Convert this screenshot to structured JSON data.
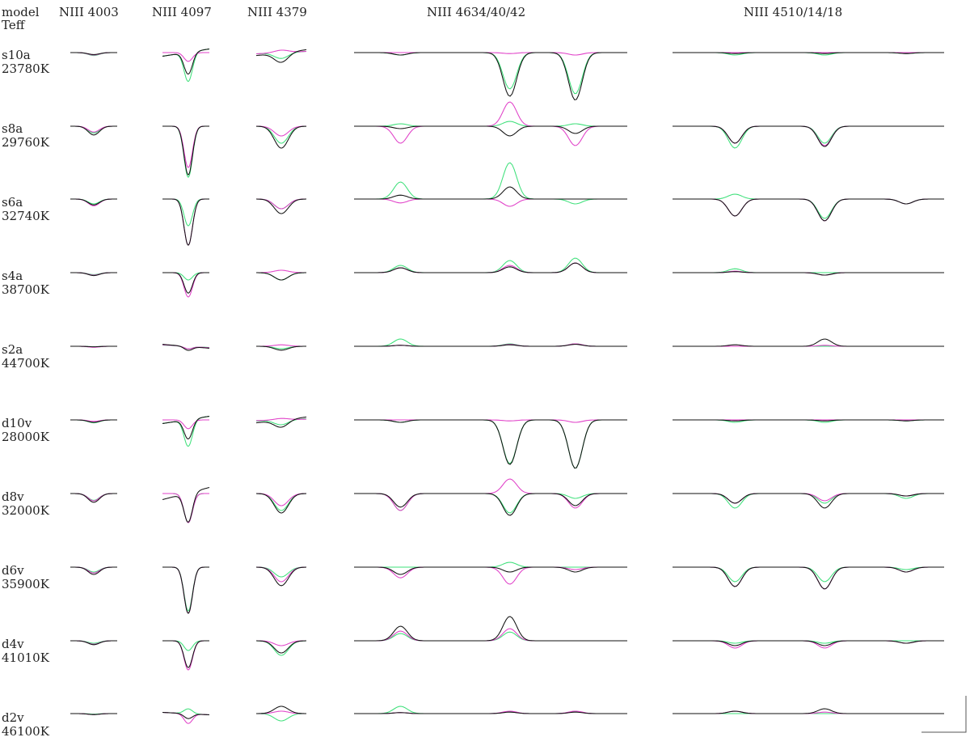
{
  "header": {
    "model_label": "model",
    "teff_label": "Teff",
    "columns": [
      "NIII 4003",
      "NIII 4097",
      "NIII 4379",
      "NIII 4634/40/42",
      "NIII 4510/14/18"
    ]
  },
  "rows": [
    {
      "model": "s10a",
      "teff": "23780K"
    },
    {
      "model": "s8a",
      "teff": "29760K"
    },
    {
      "model": "s6a",
      "teff": "32740K"
    },
    {
      "model": "s4a",
      "teff": "38700K"
    },
    {
      "model": "s2a",
      "teff": "44700K"
    },
    {
      "model": "d10v",
      "teff": "28000K"
    },
    {
      "model": "d8v",
      "teff": "32000K"
    },
    {
      "model": "d6v",
      "teff": "35900K"
    },
    {
      "model": "d4v",
      "teff": "41010K"
    },
    {
      "model": "d2v",
      "teff": "46100K"
    }
  ],
  "colors": {
    "black": "#111111",
    "magenta": "#e040c8",
    "green": "#3ee07a",
    "grey": "#999999"
  },
  "chart_data": {
    "type": "line",
    "description": "Grid of normalized line-profile panels: rows = models, columns = NIII line groups; three profile series per panel (black, magenta, green). Values are normalized flux (continuum = 1).",
    "xlabel": "",
    "ylabel": "",
    "columns": [
      {
        "name": "NIII 4003",
        "lines": [
          0.5
        ]
      },
      {
        "name": "NIII 4097",
        "lines": [
          0.55
        ]
      },
      {
        "name": "NIII 4379",
        "lines": [
          0.5
        ]
      },
      {
        "name": "NIII 4634/40/42",
        "lines": [
          0.17,
          0.57,
          0.81
        ]
      },
      {
        "name": "NIII 4510/14/18",
        "lines": [
          0.23,
          0.56,
          0.86
        ]
      }
    ],
    "series_colors": [
      "#111111",
      "#e040c8",
      "#3ee07a"
    ],
    "panels": [
      [
        {
          "a": [
            -0.04,
            -0.05,
            -0.06
          ]
        },
        {
          "a": [
            -0.45,
            -0.18,
            -0.6
          ],
          "tilt": [
            0.15,
            0.0,
            0.15
          ]
        },
        {
          "a": [
            -0.2,
            0.05,
            -0.12
          ],
          "tilt": [
            0.12,
            0.05,
            0.05
          ]
        },
        {
          "a": [
            [
              -0.05,
              -0.9,
              -0.98
            ],
            [
              0,
              -0.02,
              -0.05
            ],
            [
              -0.05,
              -0.75,
              -0.85
            ]
          ]
        },
        {
          "a": [
            [
              -0.02,
              -0.02,
              -0.02
            ],
            [
              0,
              0,
              0
            ],
            [
              -0.05,
              -0.05,
              -0.02
            ]
          ]
        }
      ],
      [
        {
          "a": [
            -0.18,
            -0.12,
            -0.14
          ]
        },
        {
          "a": [
            -1.0,
            -0.85,
            -1.05
          ]
        },
        {
          "a": [
            -0.45,
            -0.2,
            -0.35
          ]
        },
        {
          "a": [
            [
              -0.05,
              -0.2,
              -0.15
            ],
            [
              -0.35,
              0.5,
              -0.4
            ],
            [
              0.05,
              0.1,
              0.05
            ]
          ]
        },
        {
          "a": [
            [
              -0.35,
              -0.42,
              0.0
            ],
            [
              -0.35,
              -0.4,
              0.0
            ],
            [
              -0.45,
              -0.35,
              0.0
            ]
          ]
        }
      ],
      [
        {
          "a": [
            -0.12,
            -0.14,
            -0.1
          ]
        },
        {
          "a": [
            -0.95,
            -0.95,
            -0.55
          ]
        },
        {
          "a": [
            -0.3,
            -0.2,
            -0.2
          ]
        },
        {
          "a": [
            [
              0.08,
              0.25,
              0.0
            ],
            [
              -0.08,
              -0.15,
              0.0
            ],
            [
              0.35,
              0.75,
              -0.1
            ]
          ]
        },
        {
          "a": [
            [
              -0.35,
              -0.45,
              -0.1
            ],
            [
              -0.35,
              -0.45,
              -0.1
            ],
            [
              0.1,
              -0.4,
              -0.1
            ]
          ]
        }
      ],
      [
        {
          "a": [
            -0.06,
            -0.05,
            -0.04
          ]
        },
        {
          "a": [
            -0.42,
            -0.5,
            -0.15
          ]
        },
        {
          "a": [
            -0.15,
            0.05,
            -0.15
          ]
        },
        {
          "a": [
            [
              0.1,
              0.12,
              0.2
            ],
            [
              0.1,
              0.15,
              0.2
            ],
            [
              0.15,
              0.25,
              0.3
            ]
          ]
        },
        {
          "a": [
            [
              0.02,
              -0.05,
              0.0
            ],
            [
              0.03,
              -0.05,
              0.0
            ],
            [
              0.08,
              0.0,
              0.0
            ]
          ]
        }
      ],
      [
        {
          "a": [
            -0.01,
            -0.02,
            -0.01
          ]
        },
        {
          "a": [
            -0.08,
            -0.05,
            -0.05
          ],
          "tilt": [
            -0.08,
            -0.06,
            -0.05
          ]
        },
        {
          "a": [
            -0.08,
            0.03,
            -0.05
          ]
        },
        {
          "a": [
            [
              0.02,
              0.03,
              0.04
            ],
            [
              0.02,
              0.04,
              0.05
            ],
            [
              0.15,
              0.05,
              0.05
            ]
          ]
        },
        {
          "a": [
            [
              0.03,
              0.15,
              0.0
            ],
            [
              0.0,
              0.02,
              0.0
            ],
            [
              0.0,
              0.0,
              0.0
            ]
          ]
        }
      ],
      [
        {
          "a": [
            -0.05,
            -0.03,
            -0.06
          ]
        },
        {
          "a": [
            -0.4,
            -0.18,
            -0.55
          ],
          "tilt": [
            0.15,
            0.0,
            0.15
          ]
        },
        {
          "a": [
            -0.15,
            0.03,
            -0.1
          ],
          "tilt": [
            0.12,
            0.03,
            0.05
          ]
        },
        {
          "a": [
            [
              -0.05,
              -0.92,
              -1.0
            ],
            [
              0,
              -0.02,
              -0.05
            ],
            [
              -0.05,
              -0.9,
              -1.0
            ]
          ]
        },
        {
          "a": [
            [
              -0.02,
              -0.02,
              -0.02
            ],
            [
              0,
              0,
              0
            ],
            [
              -0.05,
              -0.05,
              -0.02
            ]
          ]
        }
      ],
      [
        {
          "a": [
            -0.18,
            -0.15,
            -0.14
          ]
        },
        {
          "a": [
            -0.6,
            -0.6,
            -0.6
          ],
          "tilt": [
            0.25,
            0.0,
            0.0
          ]
        },
        {
          "a": [
            -0.4,
            -0.25,
            -0.35
          ]
        },
        {
          "a": [
            [
              -0.28,
              -0.45,
              -0.25
            ],
            [
              -0.35,
              0.3,
              -0.3
            ],
            [
              -0.35,
              -0.4,
              -0.1
            ]
          ]
        },
        {
          "a": [
            [
              -0.2,
              -0.3,
              -0.05
            ],
            [
              -0.2,
              -0.15,
              -0.05
            ],
            [
              -0.3,
              -0.2,
              -0.1
            ]
          ]
        }
      ],
      [
        {
          "a": [
            -0.15,
            -0.12,
            -0.1
          ]
        },
        {
          "a": [
            -0.95,
            -0.95,
            -0.9
          ]
        },
        {
          "a": [
            -0.38,
            -0.3,
            -0.2
          ]
        },
        {
          "a": [
            [
              -0.15,
              -0.1,
              -0.1
            ],
            [
              -0.22,
              -0.35,
              -0.05
            ],
            [
              0.0,
              0.1,
              0.0
            ]
          ]
        },
        {
          "a": [
            [
              -0.4,
              -0.45,
              -0.1
            ],
            [
              -0.4,
              -0.45,
              -0.1
            ],
            [
              -0.3,
              -0.3,
              -0.05
            ]
          ]
        }
      ],
      [
        {
          "a": [
            -0.08,
            -0.07,
            -0.05
          ]
        },
        {
          "a": [
            -0.55,
            -0.6,
            -0.2
          ]
        },
        {
          "a": [
            -0.25,
            -0.1,
            -0.3
          ]
        },
        {
          "a": [
            [
              0.3,
              0.5,
              0.0
            ],
            [
              0.2,
              0.25,
              0.0
            ],
            [
              0.15,
              0.18,
              0.0
            ]
          ]
        },
        {
          "a": [
            [
              -0.1,
              -0.1,
              -0.05
            ],
            [
              -0.15,
              -0.15,
              -0.05
            ],
            [
              -0.05,
              -0.05,
              0.0
            ]
          ]
        }
      ],
      [
        {
          "a": [
            -0.02,
            -0.02,
            -0.01
          ]
        },
        {
          "a": [
            -0.1,
            -0.2,
            0.1
          ],
          "tilt": [
            -0.05,
            -0.05,
            -0.05
          ]
        },
        {
          "a": [
            0.15,
            0.05,
            -0.15
          ]
        },
        {
          "a": [
            [
              0.02,
              0.03,
              0.03
            ],
            [
              0.02,
              0.05,
              0.05
            ],
            [
              0.15,
              0.04,
              0.04
            ]
          ]
        },
        {
          "a": [
            [
              0.05,
              0.1,
              0.0
            ],
            [
              0.05,
              0.03,
              0.0
            ],
            [
              0.0,
              0.0,
              0.0
            ]
          ]
        }
      ]
    ]
  }
}
